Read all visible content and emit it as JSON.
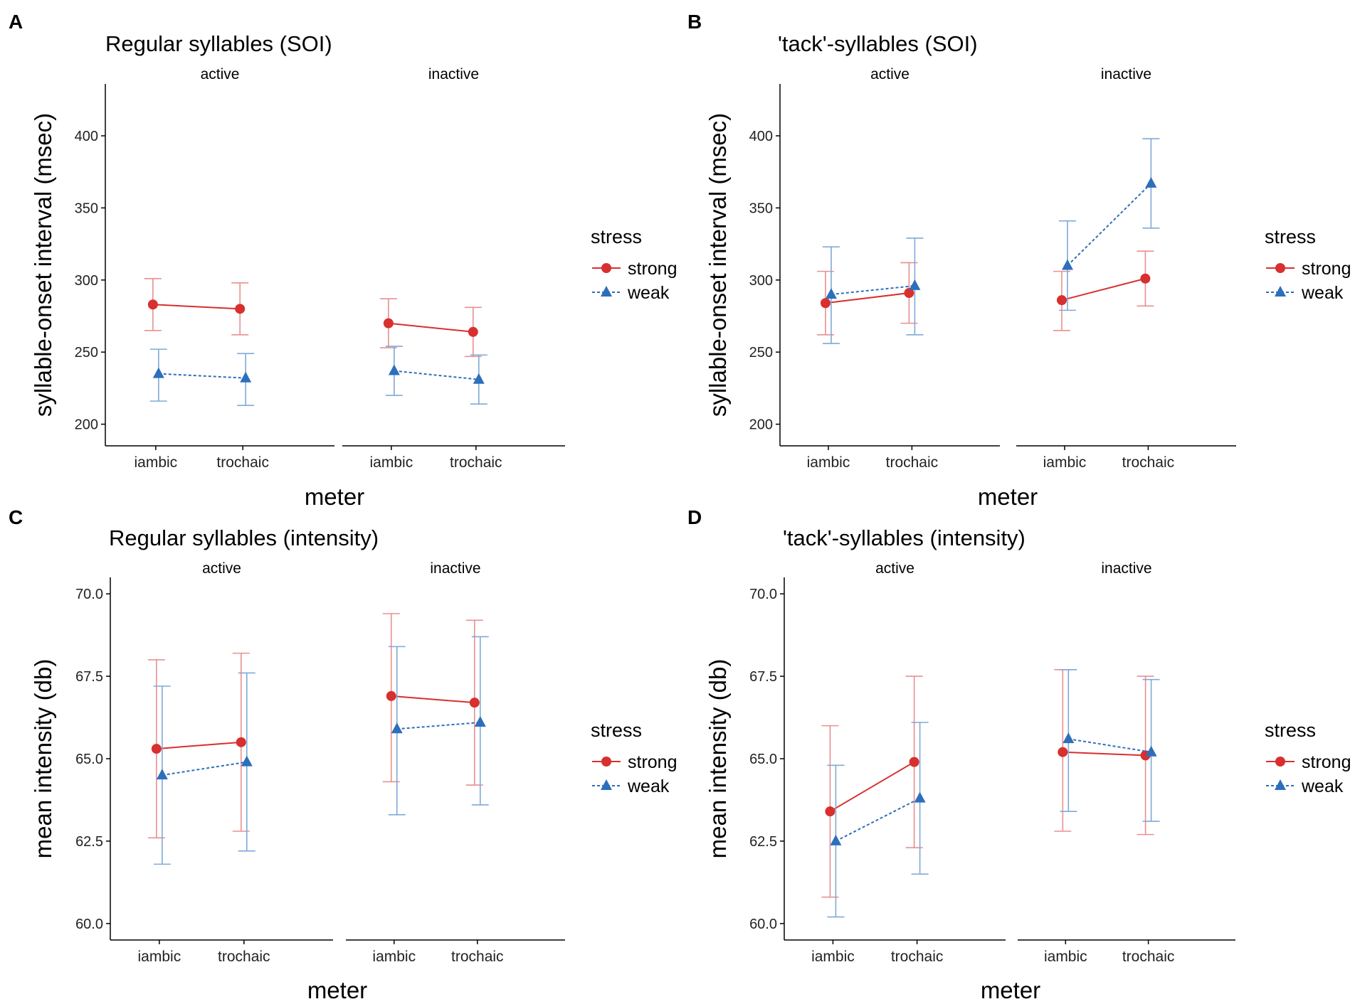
{
  "colors": {
    "strong": "#d7302f",
    "weak": "#2d6fbb",
    "errorbar_strong": "#e8908f",
    "errorbar_weak": "#7fa9d6",
    "axis": "#000000",
    "text": "#000000"
  },
  "chart_data": [
    {
      "panel": "A",
      "type": "line",
      "title": "Regular syllables (SOI)",
      "xlabel": "meter",
      "ylabel": "syllable-onset interval (msec)",
      "ylim": [
        185,
        436
      ],
      "yticks": [
        200,
        250,
        300,
        350,
        400
      ],
      "ytick_labels": [
        "200",
        "250",
        "300",
        "350",
        "400"
      ],
      "categories": [
        "iambic",
        "trochaic"
      ],
      "facets": [
        "active",
        "inactive"
      ],
      "legend": {
        "title": "stress",
        "items": [
          "strong",
          "weak"
        ],
        "position": "right"
      },
      "series": [
        {
          "name": "strong",
          "facets": {
            "active": [
              {
                "x": "iambic",
                "y": 283,
                "lo": 265,
                "hi": 301
              },
              {
                "x": "trochaic",
                "y": 280,
                "lo": 262,
                "hi": 298
              }
            ],
            "inactive": [
              {
                "x": "iambic",
                "y": 270,
                "lo": 253,
                "hi": 287
              },
              {
                "x": "trochaic",
                "y": 264,
                "lo": 247,
                "hi": 281
              }
            ]
          }
        },
        {
          "name": "weak",
          "facets": {
            "active": [
              {
                "x": "iambic",
                "y": 235,
                "lo": 216,
                "hi": 252
              },
              {
                "x": "trochaic",
                "y": 232,
                "lo": 213,
                "hi": 249
              }
            ],
            "inactive": [
              {
                "x": "iambic",
                "y": 237,
                "lo": 220,
                "hi": 254
              },
              {
                "x": "trochaic",
                "y": 231,
                "lo": 214,
                "hi": 248
              }
            ]
          }
        }
      ]
    },
    {
      "panel": "B",
      "type": "line",
      "title": "'tack'-syllables (SOI)",
      "xlabel": "meter",
      "ylabel": "syllable-onset interval (msec)",
      "ylim": [
        185,
        436
      ],
      "yticks": [
        200,
        250,
        300,
        350,
        400
      ],
      "ytick_labels": [
        "200",
        "250",
        "300",
        "350",
        "400"
      ],
      "categories": [
        "iambic",
        "trochaic"
      ],
      "facets": [
        "active",
        "inactive"
      ],
      "legend": {
        "title": "stress",
        "items": [
          "strong",
          "weak"
        ],
        "position": "right"
      },
      "series": [
        {
          "name": "strong",
          "facets": {
            "active": [
              {
                "x": "iambic",
                "y": 284,
                "lo": 262,
                "hi": 306
              },
              {
                "x": "trochaic",
                "y": 291,
                "lo": 270,
                "hi": 312
              }
            ],
            "inactive": [
              {
                "x": "iambic",
                "y": 286,
                "lo": 265,
                "hi": 306
              },
              {
                "x": "trochaic",
                "y": 301,
                "lo": 282,
                "hi": 320
              }
            ]
          }
        },
        {
          "name": "weak",
          "facets": {
            "active": [
              {
                "x": "iambic",
                "y": 290,
                "lo": 256,
                "hi": 323
              },
              {
                "x": "trochaic",
                "y": 296,
                "lo": 262,
                "hi": 329
              }
            ],
            "inactive": [
              {
                "x": "iambic",
                "y": 310,
                "lo": 279,
                "hi": 341
              },
              {
                "x": "trochaic",
                "y": 367,
                "lo": 336,
                "hi": 398
              }
            ]
          }
        }
      ]
    },
    {
      "panel": "C",
      "type": "line",
      "title": "Regular syllables (intensity)",
      "xlabel": "meter",
      "ylabel": "mean intensity (db)",
      "ylim": [
        59.5,
        70.5
      ],
      "yticks": [
        60,
        62.5,
        65,
        67.5,
        70
      ],
      "ytick_labels": [
        "60.0",
        "62.5",
        "65.0",
        "67.5",
        "70.0"
      ],
      "categories": [
        "iambic",
        "trochaic"
      ],
      "facets": [
        "active",
        "inactive"
      ],
      "legend": {
        "title": "stress",
        "items": [
          "strong",
          "weak"
        ],
        "position": "right"
      },
      "series": [
        {
          "name": "strong",
          "facets": {
            "active": [
              {
                "x": "iambic",
                "y": 65.3,
                "lo": 62.6,
                "hi": 68.0
              },
              {
                "x": "trochaic",
                "y": 65.5,
                "lo": 62.8,
                "hi": 68.2
              }
            ],
            "inactive": [
              {
                "x": "iambic",
                "y": 66.9,
                "lo": 64.3,
                "hi": 69.4
              },
              {
                "x": "trochaic",
                "y": 66.7,
                "lo": 64.2,
                "hi": 69.2
              }
            ]
          }
        },
        {
          "name": "weak",
          "facets": {
            "active": [
              {
                "x": "iambic",
                "y": 64.5,
                "lo": 61.8,
                "hi": 67.2
              },
              {
                "x": "trochaic",
                "y": 64.9,
                "lo": 62.2,
                "hi": 67.6
              }
            ],
            "inactive": [
              {
                "x": "iambic",
                "y": 65.9,
                "lo": 63.3,
                "hi": 68.4
              },
              {
                "x": "trochaic",
                "y": 66.1,
                "lo": 63.6,
                "hi": 68.7
              }
            ]
          }
        }
      ]
    },
    {
      "panel": "D",
      "type": "line",
      "title": "'tack'-syllables (intensity)",
      "xlabel": "meter",
      "ylabel": "mean intensity (db)",
      "ylim": [
        59.5,
        70.5
      ],
      "yticks": [
        60,
        62.5,
        65,
        67.5,
        70
      ],
      "ytick_labels": [
        "60.0",
        "62.5",
        "65.0",
        "67.5",
        "70.0"
      ],
      "categories": [
        "iambic",
        "trochaic"
      ],
      "facets": [
        "active",
        "inactive"
      ],
      "legend": {
        "title": "stress",
        "items": [
          "strong",
          "weak"
        ],
        "position": "right"
      },
      "series": [
        {
          "name": "strong",
          "facets": {
            "active": [
              {
                "x": "iambic",
                "y": 63.4,
                "lo": 60.8,
                "hi": 66.0
              },
              {
                "x": "trochaic",
                "y": 64.9,
                "lo": 62.3,
                "hi": 67.5
              }
            ],
            "inactive": [
              {
                "x": "iambic",
                "y": 65.2,
                "lo": 62.8,
                "hi": 67.7
              },
              {
                "x": "trochaic",
                "y": 65.1,
                "lo": 62.7,
                "hi": 67.5
              }
            ]
          }
        },
        {
          "name": "weak",
          "facets": {
            "active": [
              {
                "x": "iambic",
                "y": 62.5,
                "lo": 60.2,
                "hi": 64.8
              },
              {
                "x": "trochaic",
                "y": 63.8,
                "lo": 61.5,
                "hi": 66.1
              }
            ],
            "inactive": [
              {
                "x": "iambic",
                "y": 65.6,
                "lo": 63.4,
                "hi": 67.7
              },
              {
                "x": "trochaic",
                "y": 65.2,
                "lo": 63.1,
                "hi": 67.4
              }
            ]
          }
        }
      ]
    }
  ]
}
